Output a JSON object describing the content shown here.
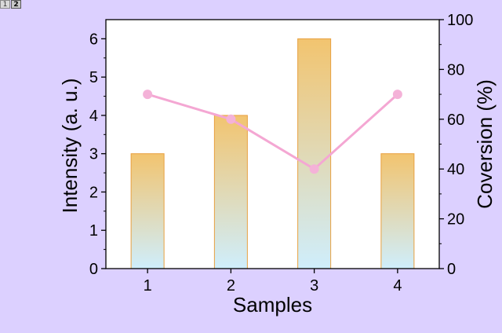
{
  "window": {
    "layer_tabs": [
      {
        "label": "1",
        "active": false
      },
      {
        "label": "2",
        "active": true
      }
    ]
  },
  "colors": {
    "page_background": "#dcd0ff",
    "plot_background": "#ffffff",
    "bar_top": "#f2c46f",
    "bar_bottom": "#cfeefc",
    "bar_border": "#e8a040",
    "line": "#f4a7d3",
    "marker": "#f4b2d8",
    "axis": "#000000"
  },
  "chart_data": {
    "type": "bar",
    "title": "",
    "xlabel": "Samples",
    "ylabel": "Intensity (a. u.)",
    "y2label": "Coversion (%)",
    "categories": [
      "1",
      "2",
      "3",
      "4"
    ],
    "ylim": [
      0,
      6.5
    ],
    "y2lim": [
      0,
      100
    ],
    "yticks": [
      0,
      1,
      2,
      3,
      4,
      5,
      6
    ],
    "y2ticks": [
      0,
      20,
      40,
      60,
      80,
      100
    ],
    "grid": false,
    "legend": "none",
    "series": [
      {
        "name": "Intensity",
        "type": "bar",
        "axis": "left",
        "values": [
          3,
          4,
          6,
          3
        ]
      },
      {
        "name": "Coversion",
        "type": "line",
        "axis": "right",
        "values": [
          70,
          60,
          40,
          70
        ]
      }
    ]
  }
}
